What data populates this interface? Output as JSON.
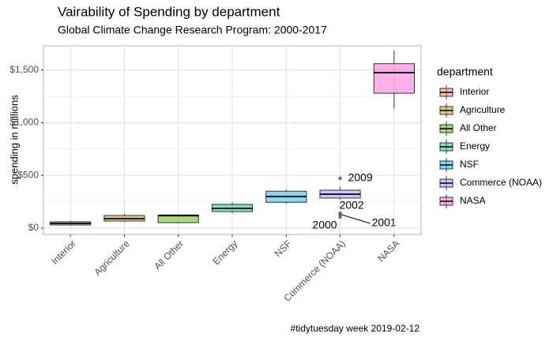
{
  "chart_data": {
    "type": "boxplot",
    "title": "Vairability of Spending by department",
    "subtitle": "Global Climate Change Research Program: 2000-2017",
    "y_label": "spending in millions",
    "caption": "#tidytuesday week 2019-02-12",
    "legend_title": "department",
    "legend_position": "right",
    "grid": true,
    "ylim": [
      -60,
      1730
    ],
    "yticks": [
      {
        "value": 0,
        "label": "$0"
      },
      {
        "value": 500,
        "label": "$500"
      },
      {
        "value": 1000,
        "label": "$1,000"
      },
      {
        "value": 1500,
        "label": "$1,500"
      }
    ],
    "y_minor_ticks": [
      250,
      750,
      1250
    ],
    "series": [
      {
        "name": "Interior",
        "color": "#F8766D",
        "min": 25,
        "q1": 30,
        "median": 45,
        "q3": 60,
        "max": 70,
        "outliers": []
      },
      {
        "name": "Agriculture",
        "color": "#C49A00",
        "min": 60,
        "q1": 67,
        "median": 90,
        "q3": 120,
        "max": 135,
        "outliers": []
      },
      {
        "name": "All Other",
        "color": "#53B400",
        "min": 45,
        "q1": 52,
        "median": 118,
        "q3": 125,
        "max": 130,
        "outliers": []
      },
      {
        "name": "Energy",
        "color": "#00C094",
        "min": 140,
        "q1": 157,
        "median": 187,
        "q3": 225,
        "max": 245,
        "outliers": []
      },
      {
        "name": "NSF",
        "color": "#00B6EB",
        "min": 230,
        "q1": 245,
        "median": 300,
        "q3": 350,
        "max": 365,
        "outliers": []
      },
      {
        "name": "Commerce (NOAA)",
        "color": "#A58AFF",
        "min": 270,
        "q1": 285,
        "median": 322,
        "q3": 360,
        "max": 390,
        "outliers": [
          {
            "value": 472,
            "label": "2009"
          },
          {
            "value": 142,
            "label": "2002"
          },
          {
            "value": 127,
            "label": "2001"
          },
          {
            "value": 105,
            "label": "2000"
          }
        ]
      },
      {
        "name": "NASA",
        "color": "#FB61D7",
        "min": 1135,
        "q1": 1280,
        "median": 1475,
        "q3": 1560,
        "max": 1685,
        "outliers": []
      }
    ]
  }
}
